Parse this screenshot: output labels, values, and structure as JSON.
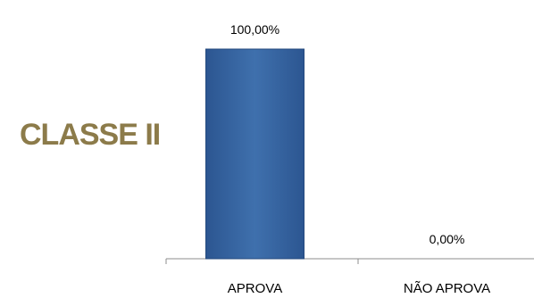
{
  "chart_data": {
    "type": "bar",
    "title": "CLASSE II",
    "categories": [
      "APROVA",
      "NÃO APROVA"
    ],
    "values": [
      100,
      0
    ],
    "data_labels": [
      "100,00%",
      "0,00%"
    ],
    "ylim": [
      0,
      100
    ],
    "grid": false,
    "legend": "none",
    "bar_color": "#3a6aa6"
  }
}
